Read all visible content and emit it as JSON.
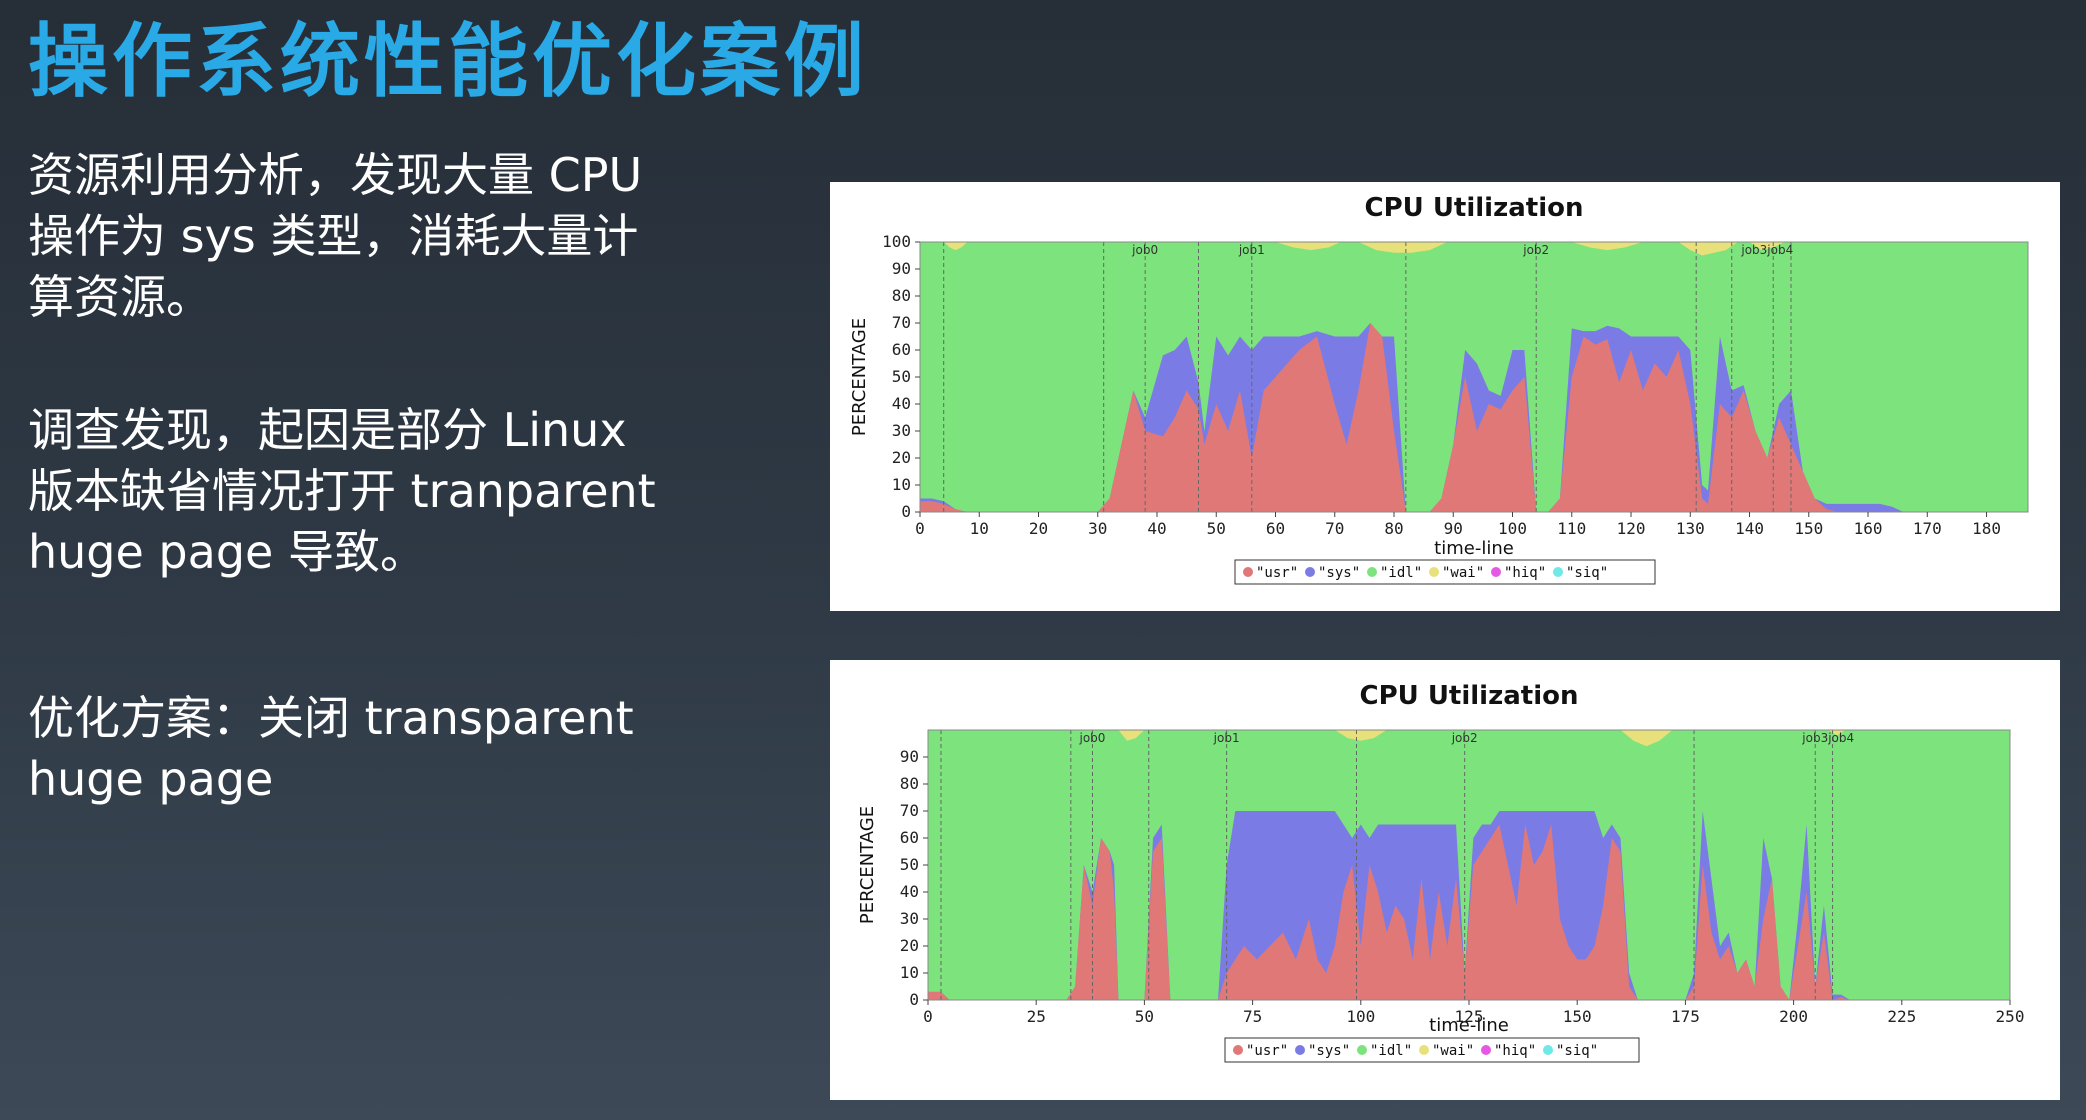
{
  "slide": {
    "title": "操作系统性能优化案例",
    "paragraphs": [
      [
        "资源利用分析，发现大量 CPU",
        "操作为 sys 类型，消耗大量计",
        "算资源。"
      ],
      [
        "调查发现，起因是部分 Linux",
        "版本缺省情况打开 tranparent",
        "huge page 导致。"
      ],
      [
        "优化方案：关闭 transparent",
        "huge page"
      ]
    ]
  },
  "colors": {
    "usr": "#e07878",
    "sys": "#7b7be6",
    "idl": "#7de37d",
    "wai": "#e8e07a",
    "hiq": "#e657e6",
    "siq": "#6fe8e8",
    "title": "#29a9e6"
  },
  "chart_data": [
    {
      "type": "area",
      "stacked": true,
      "title": "CPU Utilization",
      "xlabel": "time-line",
      "ylabel": "PERCENTAGE",
      "xlim": [
        0,
        187
      ],
      "ylim": [
        0,
        100
      ],
      "xticks": [
        0,
        10,
        20,
        30,
        40,
        50,
        60,
        70,
        80,
        90,
        100,
        110,
        120,
        130,
        140,
        150,
        160,
        170,
        180
      ],
      "yticks": [
        0,
        10,
        20,
        30,
        40,
        50,
        60,
        70,
        80,
        90,
        100
      ],
      "grid": false,
      "legend": [
        "\"usr\"",
        "\"sys\"",
        "\"idl\"",
        "\"wai\"",
        "\"hiq\"",
        "\"siq\""
      ],
      "legend_position": "bottom",
      "vlines": [
        4,
        31,
        38,
        47,
        56,
        82,
        104,
        131,
        137,
        144,
        147
      ],
      "job_labels": [
        {
          "x": 38,
          "text": "job0"
        },
        {
          "x": 56,
          "text": "job1"
        },
        {
          "x": 104,
          "text": "job2"
        },
        {
          "x": 143,
          "text": "job3job4"
        }
      ],
      "series": [
        {
          "name": "usr",
          "x": [
            0,
            2,
            4,
            6,
            8,
            30,
            32,
            34,
            36,
            38,
            41,
            43,
            45,
            47,
            48,
            50,
            52,
            54,
            56,
            58,
            60,
            62,
            64,
            67,
            70,
            72,
            74,
            76,
            78,
            80,
            82,
            84,
            86,
            88,
            90,
            92,
            94,
            96,
            98,
            100,
            102,
            104,
            106,
            108,
            110,
            112,
            114,
            116,
            118,
            120,
            122,
            124,
            126,
            128,
            130,
            132,
            133,
            135,
            137,
            139,
            141,
            143,
            145,
            147,
            149,
            151,
            153,
            155,
            157,
            160,
            162,
            164,
            166,
            168,
            170,
            172,
            174,
            176,
            178,
            180,
            182,
            186
          ],
          "y": [
            4,
            4,
            3,
            1,
            0,
            0,
            5,
            25,
            45,
            30,
            28,
            35,
            45,
            38,
            25,
            40,
            30,
            45,
            20,
            45,
            50,
            55,
            60,
            65,
            40,
            25,
            45,
            70,
            65,
            30,
            0,
            0,
            0,
            5,
            25,
            50,
            30,
            40,
            38,
            45,
            50,
            0,
            0,
            5,
            50,
            65,
            62,
            64,
            48,
            60,
            45,
            55,
            50,
            60,
            40,
            5,
            3,
            40,
            35,
            45,
            30,
            20,
            35,
            25,
            15,
            5,
            1,
            0,
            0,
            0,
            0,
            0,
            0,
            0,
            0,
            0,
            0,
            0,
            0,
            0,
            0,
            0
          ]
        },
        {
          "name": "sys",
          "x": [
            0,
            2,
            4,
            6,
            8,
            30,
            32,
            34,
            36,
            38,
            41,
            43,
            45,
            47,
            48,
            50,
            52,
            54,
            56,
            58,
            60,
            62,
            64,
            67,
            70,
            72,
            74,
            76,
            78,
            80,
            82,
            84,
            86,
            88,
            90,
            92,
            94,
            96,
            98,
            100,
            102,
            104,
            106,
            108,
            110,
            112,
            114,
            116,
            118,
            120,
            122,
            124,
            126,
            128,
            130,
            132,
            133,
            135,
            137,
            139,
            141,
            143,
            145,
            147,
            149,
            151,
            153,
            155,
            157,
            160,
            162,
            164,
            166,
            168,
            170,
            172,
            174,
            176,
            178,
            180,
            182,
            186
          ],
          "y": [
            1,
            1,
            1,
            0,
            0,
            0,
            0,
            0,
            0,
            5,
            30,
            25,
            20,
            10,
            5,
            25,
            28,
            20,
            40,
            20,
            15,
            10,
            5,
            2,
            25,
            40,
            20,
            0,
            0,
            35,
            0,
            0,
            0,
            0,
            0,
            10,
            25,
            5,
            5,
            15,
            10,
            0,
            0,
            0,
            18,
            2,
            5,
            5,
            20,
            5,
            20,
            10,
            15,
            5,
            20,
            5,
            5,
            25,
            10,
            2,
            0,
            0,
            5,
            20,
            0,
            0,
            2,
            3,
            3,
            3,
            3,
            2,
            0,
            0,
            0,
            0,
            0,
            0,
            0,
            0,
            0,
            0
          ]
        },
        {
          "name": "idl",
          "x": [
            0,
            186
          ],
          "y": [
            100,
            100
          ]
        },
        {
          "name": "wai",
          "x": [
            0,
            2,
            4,
            6,
            8,
            30,
            32,
            34,
            36,
            38,
            41,
            43,
            45,
            47,
            48,
            50,
            52,
            54,
            56,
            58,
            60,
            62,
            64,
            67,
            70,
            72,
            74,
            76,
            78,
            80,
            82,
            84,
            86,
            88,
            90,
            92,
            94,
            96,
            98,
            100,
            102,
            104,
            106,
            108,
            110,
            112,
            114,
            116,
            118,
            120,
            122,
            124,
            126,
            128,
            130,
            132,
            133,
            135,
            137,
            139,
            141,
            143,
            145,
            147,
            149,
            151,
            153,
            155,
            157,
            160,
            162,
            164,
            166,
            168,
            170,
            172,
            174,
            176,
            178,
            180,
            182,
            186
          ],
          "y": [
            0,
            0,
            0,
            0,
            0,
            0,
            0,
            0,
            0,
            0,
            0,
            0,
            0,
            0,
            0,
            0,
            0,
            0,
            0,
            0,
            0,
            0,
            0,
            0,
            0,
            0,
            0,
            0,
            0,
            0,
            0,
            0,
            0,
            0,
            0,
            0,
            0,
            0,
            0,
            0,
            0,
            0,
            0,
            0,
            0,
            0,
            0,
            0,
            0,
            0,
            0,
            0,
            0,
            0,
            0,
            0,
            0,
            0,
            0,
            0,
            0,
            0,
            0,
            0,
            0,
            0,
            0,
            0,
            0,
            0,
            0,
            0,
            0,
            0,
            0,
            0,
            0,
            0,
            0,
            0,
            0,
            0
          ]
        }
      ],
      "wai_patches": [
        {
          "x": [
            4,
            5,
            6,
            7,
            8
          ],
          "top": [
            0,
            2,
            3,
            2,
            0
          ]
        },
        {
          "x": [
            60,
            63,
            66,
            69,
            71
          ],
          "top": [
            0,
            2,
            3,
            2,
            0
          ]
        },
        {
          "x": [
            74,
            77,
            80,
            83,
            86,
            89
          ],
          "top": [
            0,
            3,
            4,
            4,
            3,
            0
          ]
        },
        {
          "x": [
            110,
            113,
            116,
            119,
            122
          ],
          "top": [
            0,
            2,
            3,
            2,
            0
          ]
        },
        {
          "x": [
            128,
            130,
            132,
            134,
            136,
            138
          ],
          "top": [
            0,
            3,
            5,
            4,
            3,
            0
          ]
        },
        {
          "x": [
            140,
            142,
            144,
            146
          ],
          "top": [
            0,
            3,
            2,
            0
          ]
        }
      ]
    },
    {
      "type": "area",
      "stacked": true,
      "title": "CPU Utilization",
      "xlabel": "time-line",
      "ylabel": "PERCENTAGE",
      "xlim": [
        0,
        250
      ],
      "ylim": [
        0,
        100
      ],
      "xticks": [
        0,
        25,
        50,
        75,
        100,
        125,
        150,
        175,
        200,
        225,
        250
      ],
      "yticks": [
        0,
        10,
        20,
        30,
        40,
        50,
        60,
        70,
        80,
        90
      ],
      "grid": false,
      "legend": [
        "\"usr\"",
        "\"sys\"",
        "\"idl\"",
        "\"wai\"",
        "\"hiq\"",
        "\"siq\""
      ],
      "legend_position": "bottom",
      "vlines": [
        3,
        33,
        38,
        51,
        69,
        99,
        124,
        177,
        205,
        209
      ],
      "job_labels": [
        {
          "x": 38,
          "text": "job0"
        },
        {
          "x": 69,
          "text": "job1"
        },
        {
          "x": 124,
          "text": "job2"
        },
        {
          "x": 208,
          "text": "job3job4"
        }
      ],
      "series": [
        {
          "name": "usr",
          "x": [
            0,
            3,
            5,
            32,
            34,
            36,
            38,
            40,
            42,
            43,
            44,
            46,
            48,
            50,
            52,
            54,
            56,
            67,
            69,
            71,
            73,
            76,
            79,
            82,
            85,
            88,
            90,
            92,
            94,
            96,
            98,
            100,
            102,
            104,
            106,
            108,
            110,
            112,
            114,
            116,
            118,
            120,
            122,
            124,
            126,
            128,
            130,
            132,
            134,
            136,
            138,
            140,
            142,
            144,
            146,
            148,
            150,
            152,
            154,
            156,
            158,
            160,
            162,
            164,
            166,
            175,
            177,
            179,
            181,
            183,
            185,
            187,
            189,
            191,
            193,
            195,
            197,
            199,
            201,
            203,
            205,
            207,
            209,
            211,
            213,
            215,
            220,
            250
          ],
          "y": [
            3,
            3,
            0,
            0,
            5,
            50,
            35,
            60,
            55,
            40,
            0,
            0,
            0,
            0,
            55,
            60,
            0,
            0,
            10,
            15,
            20,
            15,
            20,
            25,
            15,
            30,
            15,
            10,
            20,
            40,
            50,
            20,
            50,
            40,
            25,
            35,
            30,
            15,
            45,
            15,
            40,
            20,
            45,
            10,
            50,
            55,
            60,
            65,
            50,
            35,
            65,
            50,
            55,
            65,
            30,
            20,
            15,
            15,
            20,
            35,
            60,
            55,
            5,
            0,
            0,
            0,
            5,
            50,
            25,
            15,
            20,
            10,
            15,
            5,
            30,
            45,
            5,
            0,
            20,
            40,
            5,
            25,
            0,
            1,
            0,
            0,
            0,
            0
          ]
        },
        {
          "name": "sys",
          "x": [
            0,
            3,
            5,
            32,
            34,
            36,
            38,
            40,
            42,
            43,
            44,
            46,
            48,
            50,
            52,
            54,
            56,
            67,
            69,
            71,
            73,
            76,
            79,
            82,
            85,
            88,
            90,
            92,
            94,
            96,
            98,
            100,
            102,
            104,
            106,
            108,
            110,
            112,
            114,
            116,
            118,
            120,
            122,
            124,
            126,
            128,
            130,
            132,
            134,
            136,
            138,
            140,
            142,
            144,
            146,
            148,
            150,
            152,
            154,
            156,
            158,
            160,
            162,
            164,
            166,
            175,
            177,
            179,
            181,
            183,
            185,
            187,
            189,
            191,
            193,
            195,
            197,
            199,
            201,
            203,
            205,
            207,
            209,
            211,
            213,
            215,
            220,
            250
          ],
          "y": [
            0,
            0,
            0,
            0,
            0,
            0,
            5,
            0,
            0,
            10,
            0,
            0,
            0,
            0,
            5,
            5,
            0,
            0,
            40,
            55,
            50,
            55,
            50,
            45,
            55,
            40,
            55,
            60,
            50,
            25,
            10,
            45,
            10,
            25,
            40,
            30,
            35,
            50,
            20,
            50,
            25,
            45,
            20,
            0,
            10,
            10,
            5,
            5,
            20,
            35,
            5,
            20,
            15,
            5,
            40,
            50,
            55,
            55,
            50,
            25,
            5,
            5,
            5,
            0,
            0,
            0,
            5,
            20,
            20,
            5,
            5,
            0,
            0,
            0,
            30,
            0,
            0,
            0,
            10,
            25,
            0,
            10,
            2,
            1,
            0,
            0,
            0,
            0
          ]
        },
        {
          "name": "idl",
          "x": [
            0,
            250
          ],
          "y": [
            100,
            100
          ]
        }
      ],
      "wai_patches": [
        {
          "x": [
            44,
            46,
            48,
            50
          ],
          "top": [
            0,
            4,
            3,
            0
          ]
        },
        {
          "x": [
            94,
            97,
            100,
            103,
            106
          ],
          "top": [
            0,
            3,
            4,
            3,
            0
          ]
        },
        {
          "x": [
            160,
            163,
            166,
            169,
            172
          ],
          "top": [
            0,
            4,
            6,
            4,
            0
          ]
        },
        {
          "x": [
            208,
            210,
            212
          ],
          "top": [
            0,
            2,
            0
          ]
        }
      ]
    }
  ]
}
